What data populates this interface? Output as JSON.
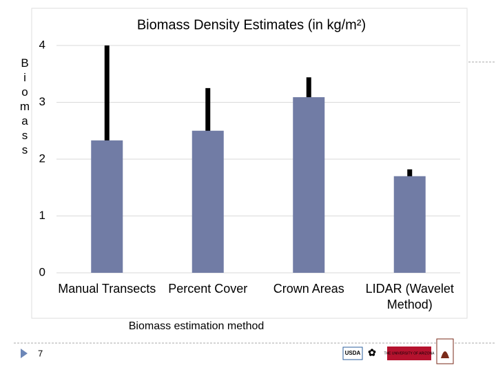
{
  "slide_number": "7",
  "logos": [
    "USDA",
    "THE UNIVERSITY OF ARIZONA"
  ],
  "chart_data": {
    "type": "bar",
    "title": "Biomass Density Estimates (in kg/m²)",
    "y_label": "Biomass",
    "x_label": "Biomass estimation method",
    "categories": [
      "Manual Transects",
      "Percent Cover",
      "Crown Areas",
      "LIDAR (Wavelet Method)"
    ],
    "values": [
      2.33,
      2.5,
      3.09,
      1.7
    ],
    "errors": [
      1.7,
      0.75,
      0.35,
      0.12
    ],
    "color": "#717ca5",
    "error_color": "#000000",
    "ylim": [
      0,
      4
    ],
    "yticks": [
      0,
      1,
      2,
      3,
      4
    ],
    "grid": true
  }
}
